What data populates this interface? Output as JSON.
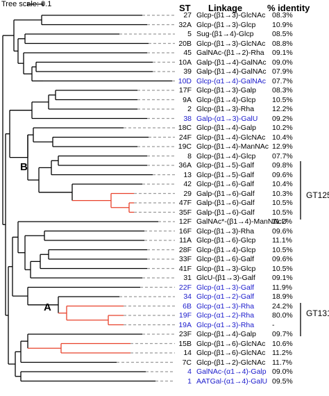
{
  "tree_scale": "Tree scale: 0.1",
  "headers": {
    "st": "ST",
    "linkage": "Linkage",
    "identity": "% identity"
  },
  "node_labels": {
    "a": "A",
    "b": "B"
  },
  "groups": {
    "gt125": "GT125",
    "gt131": "GT131"
  },
  "colors": {
    "text": "#000000",
    "highlight": "#1a1acc",
    "branch_red": "#e8402a",
    "dash": "#9a9a9a"
  },
  "rows": [
    {
      "st": "27",
      "linkage": "Glcp-(β1→3)-GlcNAc",
      "identity": "08.3%",
      "blue": false
    },
    {
      "st": "32A",
      "linkage": "Glcp-(β1→3)-Glcp",
      "identity": "10.9%",
      "blue": false
    },
    {
      "st": "5",
      "linkage": "Sug-(β1→4)-Glcp",
      "identity": "08.5%",
      "blue": false
    },
    {
      "st": "20B",
      "linkage": "Glcp-(β1→3)-GlcNAc",
      "identity": "08.8%",
      "blue": false
    },
    {
      "st": "45",
      "linkage": "GalNAc-(β1→2)-Rha",
      "identity": "09.1%",
      "blue": false
    },
    {
      "st": "10A",
      "linkage": "Galp-(β1→4)-GalNAc",
      "identity": "09.0%",
      "blue": false
    },
    {
      "st": "39",
      "linkage": "Galp-(β1→4)-GalNAc",
      "identity": "07.9%",
      "blue": false
    },
    {
      "st": "10D",
      "linkage": "Glcp-(α1→4)-GalNAc",
      "identity": "07.7%",
      "blue": true
    },
    {
      "st": "17F",
      "linkage": "Glcp-(β1→3)-Galp",
      "identity": "08.3%",
      "blue": false
    },
    {
      "st": "9A",
      "linkage": "Glcp-(β1→4)-Glcp",
      "identity": "10.5%",
      "blue": false
    },
    {
      "st": "2",
      "linkage": "Glcp-(β1→3)-Rha",
      "identity": "12.2%",
      "blue": false
    },
    {
      "st": "38",
      "linkage": "Galp-(α1→3)-GalU",
      "identity": "09.2%",
      "blue": true
    },
    {
      "st": "18C",
      "linkage": "Glcp-(β1→4)-Galp",
      "identity": "10.2%",
      "blue": false
    },
    {
      "st": "24F",
      "linkage": "Glcp-(β1→4)-GlcNAc",
      "identity": "10.4%",
      "blue": false
    },
    {
      "st": "19C",
      "linkage": "Glcp-(β1→4)-ManNAc",
      "identity": "12.9%",
      "blue": false
    },
    {
      "st": "8",
      "linkage": "Glcp-(β1→4)-Glcp",
      "identity": "07.7%",
      "blue": false
    },
    {
      "st": "36A",
      "linkage": "Glcp-(β1→5)-Galf",
      "identity": "09.8%",
      "blue": false
    },
    {
      "st": "13",
      "linkage": "Glcp-(β1→5)-Galf",
      "identity": "09.6%",
      "blue": false
    },
    {
      "st": "42",
      "linkage": "Glcp-(β1→6)-Galf",
      "identity": "10.4%",
      "blue": false
    },
    {
      "st": "29",
      "linkage": "Galp-(β1→6)-Galf",
      "identity": "10.3%",
      "blue": false
    },
    {
      "st": "47F",
      "linkage": "Galp-(β1→6)-Galf",
      "identity": "10.5%",
      "blue": false
    },
    {
      "st": "35F",
      "linkage": "Galp-(β1→6)-Galf",
      "identity": "10.5%",
      "blue": false
    },
    {
      "st": "12F",
      "linkage": "GalNAc*-(β1→4)-ManNAcU",
      "identity": "11.2%",
      "blue": false
    },
    {
      "st": "16F",
      "linkage": "Glcp-(β1→3)-Rha",
      "identity": "09.6%",
      "blue": false
    },
    {
      "st": "11A",
      "linkage": "Glcp-(β1→6)-Glcp",
      "identity": "11.1%",
      "blue": false
    },
    {
      "st": "28F",
      "linkage": "Glcp-(β1→4)-Glcp",
      "identity": "10.5%",
      "blue": false
    },
    {
      "st": "33F",
      "linkage": "Glcp-(β1→6)-Galf",
      "identity": "09.6%",
      "blue": false
    },
    {
      "st": "41F",
      "linkage": "Glcp-(β1→3)-Glcp",
      "identity": "10.5%",
      "blue": false
    },
    {
      "st": "31",
      "linkage": "GlcU-(β1→3)-Galf",
      "identity": "09.1%",
      "blue": false
    },
    {
      "st": "22F",
      "linkage": "Glcp-(α1→3)-Galf",
      "identity": "11.9%",
      "blue": true
    },
    {
      "st": "34",
      "linkage": "Glcp-(α1→2)-Galf",
      "identity": "18.9%",
      "blue": true
    },
    {
      "st": "6B",
      "linkage": "Glcp-(α1→3)-Rha",
      "identity": "24.2%",
      "blue": true
    },
    {
      "st": "19F",
      "linkage": "Glcp-(α1→2)-Rha",
      "identity": "80.0%",
      "blue": true
    },
    {
      "st": "19A",
      "linkage": "Glcp-(α1→3)-Rha",
      "identity": "-",
      "blue": true
    },
    {
      "st": "23F",
      "linkage": "Glcp-(β1→4)-Galp",
      "identity": "09.7%",
      "blue": false
    },
    {
      "st": "15B",
      "linkage": "Glcp-(β1→6)-GlcNAc",
      "identity": "10.6%",
      "blue": false
    },
    {
      "st": "14",
      "linkage": "Glcp-(β1→6)-GlcNAc",
      "identity": "11.2%",
      "blue": false
    },
    {
      "st": "7C",
      "linkage": "Glcp-(β1→2)-GlcNAc",
      "identity": "11.7%",
      "blue": false
    },
    {
      "st": "4",
      "linkage": "GalNAc-(α1→4)-Galp",
      "identity": "09.0%",
      "blue": true
    },
    {
      "st": "1",
      "linkage": "AATGal-(α1→4)-GalU",
      "identity": "09.5%",
      "blue": true
    }
  ]
}
